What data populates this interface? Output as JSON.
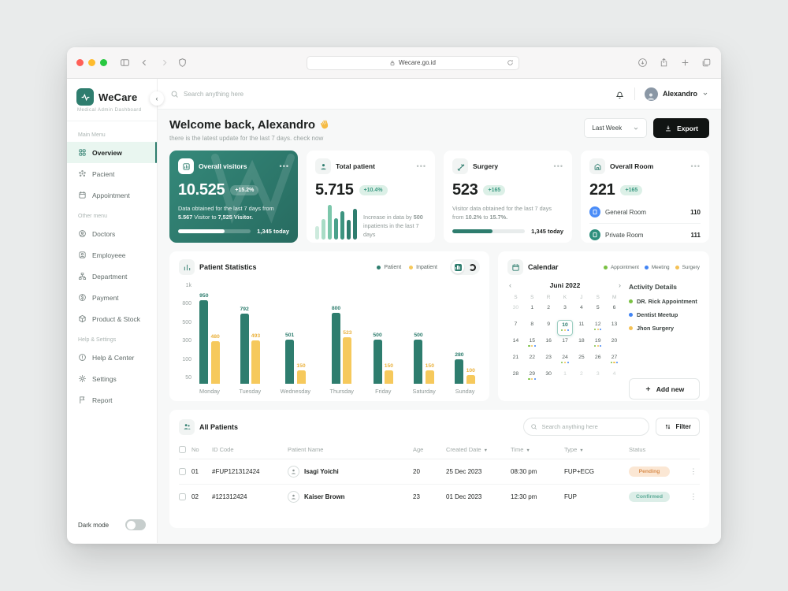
{
  "colors": {
    "primary": "#2e7d6e",
    "yellow": "#f6c95c",
    "mint_bg": "#e9f6f0",
    "badge_bg": "#dcf0e7",
    "badge_text": "#3f9c85",
    "appointment_green": "#7ac143",
    "meeting_blue": "#4285f4",
    "surgery_yellow": "#f4c155",
    "pending_text": "#d98e4e",
    "confirmed_text": "#5cab97",
    "general_room_blue": "#4b8df8",
    "private_room_green": "#2e8f7d"
  },
  "browser": {
    "url": "Wecare.go.id"
  },
  "sidebar": {
    "brand": {
      "name": "WeCare",
      "tagline": "Medical Admin Dashboard"
    },
    "sections": [
      {
        "label": "Main Menu",
        "items": [
          {
            "icon": "grid",
            "label": "Overview",
            "active": true
          },
          {
            "icon": "pacient",
            "label": "Pacient"
          },
          {
            "icon": "calendar",
            "label": "Appointment"
          }
        ]
      },
      {
        "label": "Other menu",
        "items": [
          {
            "icon": "doctor",
            "label": "Doctors"
          },
          {
            "icon": "employee",
            "label": "Employeee"
          },
          {
            "icon": "department",
            "label": "Department"
          },
          {
            "icon": "payment",
            "label": "Payment"
          },
          {
            "icon": "product",
            "label": "Product & Stock"
          }
        ]
      },
      {
        "label": "Help & Settings",
        "items": [
          {
            "icon": "help",
            "label": "Help & Center"
          },
          {
            "icon": "settings",
            "label": "Settings"
          },
          {
            "icon": "report",
            "label": "Report"
          }
        ]
      }
    ],
    "dark_mode_label": "Dark mode"
  },
  "topbar": {
    "search_placeholder": "Search anything here",
    "user": "Alexandro"
  },
  "welcome": {
    "title": "Welcome back, Alexandro",
    "subtitle": "there is the latest update for the last 7 days. check now",
    "range_label": "Last Week",
    "export_label": "Export"
  },
  "stats": {
    "visitors": {
      "title": "Overall visitors",
      "value": "10.525",
      "badge": "+15.2%",
      "desc": [
        {
          "t": "Data obtained for the last 7 days from "
        },
        {
          "t": "5.567",
          "b": true
        },
        {
          "t": " Visitor to "
        },
        {
          "t": "7,525",
          "b": true
        },
        {
          "t": " Visitor.",
          "b": true
        }
      ],
      "today": "1,345 today",
      "progress": 64
    },
    "patients": {
      "title": "Total patient",
      "value": "5.715",
      "badge": "+10.4%",
      "desc": [
        {
          "t": "Increase in data by "
        },
        {
          "t": "500",
          "b": true
        },
        {
          "t": " inpatients in the last 7 days"
        }
      ],
      "bars": [
        {
          "h": 38,
          "c": "#cdeadd"
        },
        {
          "h": 58,
          "c": "#a9dcc6"
        },
        {
          "h": 100,
          "c": "#7cc7ab"
        },
        {
          "h": 62,
          "c": "#4aa18b"
        },
        {
          "h": 82,
          "c": "#3d9480"
        },
        {
          "h": 56,
          "c": "#2e7d6e"
        },
        {
          "h": 88,
          "c": "#2e7d6e"
        }
      ]
    },
    "surgery": {
      "title": "Surgery",
      "value": "523",
      "badge": "+165",
      "desc": [
        {
          "t": "Visitor data obtained for the last 7 days from "
        },
        {
          "t": "10.2%",
          "b": true
        },
        {
          "t": " to "
        },
        {
          "t": "15.7%",
          "b": true
        },
        {
          "t": ".",
          "b": true
        }
      ],
      "today": "1,345 today",
      "progress": 55
    },
    "rooms": {
      "title": "Overall Room",
      "value": "221",
      "badge": "+165",
      "rows": [
        {
          "label": "General Room",
          "value": "110",
          "color": "#4b8df8"
        },
        {
          "label": "Private Room",
          "value": "111",
          "color": "#2e8f7d"
        }
      ]
    }
  },
  "chart_data": {
    "type": "bar",
    "title": "Patient Statistics",
    "categories": [
      "Monday",
      "Tuesday",
      "Wednesday",
      "Thursday",
      "Friday",
      "Saturday",
      "Sunday"
    ],
    "series": [
      {
        "name": "Patient",
        "color": "#2e7d6e",
        "label_color": "#2e7d6e",
        "values": [
          950,
          792,
          501,
          800,
          500,
          500,
          280
        ]
      },
      {
        "name": "Inpatient",
        "color": "#f6c95c",
        "label_color": "#eab23f",
        "values": [
          480,
          493,
          150,
          523,
          150,
          150,
          100
        ]
      }
    ],
    "y_ticks": [
      "1k",
      "800",
      "500",
      "300",
      "100",
      "50"
    ],
    "ylim": [
      0,
      1000
    ],
    "legend_position": "top",
    "grid": false
  },
  "calendar": {
    "title": "Calendar",
    "legend": [
      {
        "label": "Appointment",
        "color": "#7ac143"
      },
      {
        "label": "Meeting",
        "color": "#4285f4"
      },
      {
        "label": "Surgery",
        "color": "#f4c155"
      }
    ],
    "month": "Juni 2022",
    "prev": "‹",
    "next": "›",
    "weekdays": [
      "S",
      "S",
      "R",
      "K",
      "J",
      "S",
      "M"
    ],
    "days": [
      "30",
      "1",
      "2",
      "3",
      "4",
      "5",
      "6",
      "7",
      "8",
      "9",
      "10",
      "11",
      "12",
      "13",
      "14",
      "15",
      "16",
      "17",
      "18",
      "19",
      "20",
      "21",
      "22",
      "23",
      "24",
      "25",
      "26",
      "27",
      "28",
      "29",
      "30",
      "1",
      "2",
      "3",
      "4"
    ],
    "muted_idx": [
      0,
      31,
      32,
      33,
      34
    ],
    "selected_day": "10",
    "event_days": [
      "10",
      "12",
      "15",
      "19",
      "24",
      "27",
      "29"
    ],
    "dot_colors": [
      "#7ac143",
      "#f4c155",
      "#4285f4"
    ],
    "activity": {
      "title": "Activity Details",
      "items": [
        {
          "label": "DR. Rick Appointment",
          "color": "#7ac143"
        },
        {
          "label": "Dentist Meetup",
          "color": "#4285f4"
        },
        {
          "label": "Jhon Surgery",
          "color": "#f4c155"
        }
      ],
      "add_label": "Add new"
    }
  },
  "patients_table": {
    "title": "All Patients",
    "search_placeholder": "Search anything here",
    "filter_label": "Filter",
    "columns": [
      {
        "label": "No"
      },
      {
        "label": "ID Code"
      },
      {
        "label": "Patient Name"
      },
      {
        "label": "Age"
      },
      {
        "label": "Created Date",
        "sort": true
      },
      {
        "label": "Time",
        "sort": true
      },
      {
        "label": "Type",
        "sort": true
      },
      {
        "label": "Status"
      }
    ],
    "rows": [
      {
        "no": "01",
        "id": "#FUP121312424",
        "name": "Isagi Yoichi",
        "age": "20",
        "date": "25 Dec 2023",
        "time": "08:30 pm",
        "type": "FUP+ECG",
        "status": "Pending",
        "status_kind": "pending"
      },
      {
        "no": "02",
        "id": "#121312424",
        "name": "Kaiser Brown",
        "age": "23",
        "date": "01 Dec 2023",
        "time": "12:30 pm",
        "type": "FUP",
        "status": "Confirmed",
        "status_kind": "confirmed"
      }
    ]
  }
}
